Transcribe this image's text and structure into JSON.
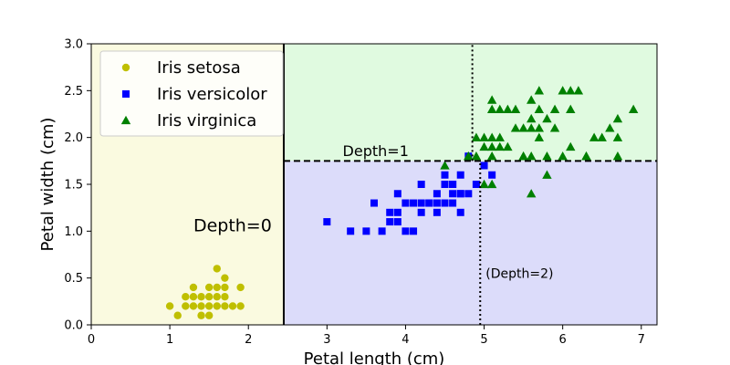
{
  "chart_data": {
    "type": "scatter",
    "title": "",
    "xlabel": "Petal length (cm)",
    "ylabel": "Petal width (cm)",
    "xlim": [
      0,
      7.2
    ],
    "ylim": [
      0,
      3.0
    ],
    "xticks": [
      0,
      1,
      2,
      3,
      4,
      5,
      6,
      7
    ],
    "yticks": [
      0.0,
      0.5,
      1.0,
      1.5,
      2.0,
      2.5,
      3.0
    ],
    "grid": false,
    "legend_position": "top-left",
    "regions": [
      {
        "x": [
          0,
          2.45
        ],
        "y": [
          0,
          3.0
        ],
        "color": "#fafae0"
      },
      {
        "x": [
          2.45,
          7.2
        ],
        "y": [
          1.75,
          3.0
        ],
        "color": "#e0fae0"
      },
      {
        "x": [
          2.45,
          7.2
        ],
        "y": [
          0,
          1.75
        ],
        "color": "#dcdcfa"
      }
    ],
    "boundaries": [
      {
        "type": "vertical",
        "x": 2.45,
        "y_range": [
          0,
          3.0
        ],
        "style": "solid",
        "width": 2
      },
      {
        "type": "horizontal",
        "y": 1.75,
        "x_range": [
          2.45,
          7.2
        ],
        "style": "dashed",
        "width": 2
      },
      {
        "type": "vertical",
        "x": 4.95,
        "y_range": [
          0,
          1.75
        ],
        "style": "dotted",
        "width": 2
      },
      {
        "type": "vertical",
        "x": 4.85,
        "y_range": [
          1.75,
          3.0
        ],
        "style": "dotted",
        "width": 2
      }
    ],
    "annotations": [
      {
        "text": "Depth=0",
        "x": 1.3,
        "y": 1.0,
        "size": "large"
      },
      {
        "text": "Depth=1",
        "x": 3.2,
        "y": 1.8,
        "size": "medium"
      },
      {
        "text": "(Depth=2)",
        "x": 5.02,
        "y": 0.5,
        "size": "small"
      }
    ],
    "series": [
      {
        "name": "Iris setosa",
        "marker": "circle",
        "color": "#bfbf00",
        "points": [
          [
            1.4,
            0.2
          ],
          [
            1.3,
            0.2
          ],
          [
            1.5,
            0.2
          ],
          [
            1.7,
            0.4
          ],
          [
            1.4,
            0.3
          ],
          [
            1.5,
            0.1
          ],
          [
            1.6,
            0.2
          ],
          [
            1.4,
            0.1
          ],
          [
            1.1,
            0.1
          ],
          [
            1.2,
            0.2
          ],
          [
            1.3,
            0.4
          ],
          [
            1.7,
            0.3
          ],
          [
            1.5,
            0.3
          ],
          [
            1.0,
            0.2
          ],
          [
            1.7,
            0.5
          ],
          [
            1.9,
            0.2
          ],
          [
            1.6,
            0.4
          ],
          [
            1.6,
            0.6
          ],
          [
            1.9,
            0.4
          ],
          [
            1.5,
            0.4
          ],
          [
            1.3,
            0.3
          ],
          [
            1.6,
            0.3
          ],
          [
            1.2,
            0.3
          ],
          [
            1.8,
            0.2
          ],
          [
            1.7,
            0.2
          ]
        ]
      },
      {
        "name": "Iris versicolor",
        "marker": "square",
        "color": "#0000ff",
        "points": [
          [
            4.7,
            1.4
          ],
          [
            4.5,
            1.5
          ],
          [
            4.9,
            1.5
          ],
          [
            4.0,
            1.3
          ],
          [
            4.6,
            1.5
          ],
          [
            4.5,
            1.3
          ],
          [
            4.7,
            1.6
          ],
          [
            3.3,
            1.0
          ],
          [
            4.6,
            1.3
          ],
          [
            3.9,
            1.4
          ],
          [
            3.5,
            1.0
          ],
          [
            4.2,
            1.5
          ],
          [
            4.0,
            1.0
          ],
          [
            3.6,
            1.3
          ],
          [
            4.4,
            1.4
          ],
          [
            4.1,
            1.0
          ],
          [
            4.5,
            1.5
          ],
          [
            3.9,
            1.1
          ],
          [
            4.8,
            1.8
          ],
          [
            4.0,
            1.3
          ],
          [
            4.9,
            1.5
          ],
          [
            4.7,
            1.2
          ],
          [
            4.3,
            1.3
          ],
          [
            4.4,
            1.3
          ],
          [
            4.8,
            1.4
          ],
          [
            5.0,
            1.7
          ],
          [
            3.8,
            1.1
          ],
          [
            3.7,
            1.0
          ],
          [
            5.1,
            1.6
          ],
          [
            4.2,
            1.2
          ],
          [
            3.0,
            1.1
          ],
          [
            4.1,
            1.3
          ],
          [
            4.6,
            1.4
          ],
          [
            4.7,
            1.4
          ],
          [
            3.8,
            1.2
          ],
          [
            4.4,
            1.2
          ],
          [
            4.5,
            1.6
          ],
          [
            4.2,
            1.3
          ],
          [
            3.9,
            1.2
          ],
          [
            4.3,
            1.3
          ],
          [
            4.6,
            1.5
          ]
        ]
      },
      {
        "name": "Iris virginica",
        "marker": "triangle",
        "color": "#008000",
        "points": [
          [
            6.0,
            2.5
          ],
          [
            5.1,
            1.9
          ],
          [
            5.9,
            2.1
          ],
          [
            5.6,
            1.8
          ],
          [
            5.8,
            2.2
          ],
          [
            6.6,
            2.1
          ],
          [
            4.5,
            1.7
          ],
          [
            6.3,
            1.8
          ],
          [
            5.8,
            1.8
          ],
          [
            6.1,
            2.5
          ],
          [
            5.1,
            2.0
          ],
          [
            5.3,
            1.9
          ],
          [
            5.5,
            2.1
          ],
          [
            5.0,
            2.0
          ],
          [
            5.1,
            2.4
          ],
          [
            5.3,
            2.3
          ],
          [
            5.5,
            1.8
          ],
          [
            6.7,
            2.2
          ],
          [
            6.9,
            2.3
          ],
          [
            5.0,
            1.5
          ],
          [
            5.7,
            2.3
          ],
          [
            4.9,
            2.0
          ],
          [
            6.7,
            2.0
          ],
          [
            4.9,
            1.8
          ],
          [
            5.7,
            2.1
          ],
          [
            6.0,
            1.8
          ],
          [
            4.8,
            1.8
          ],
          [
            5.6,
            2.1
          ],
          [
            5.8,
            1.6
          ],
          [
            6.1,
            1.9
          ],
          [
            6.4,
            2.0
          ],
          [
            5.6,
            2.2
          ],
          [
            5.1,
            1.5
          ],
          [
            5.6,
            1.4
          ],
          [
            6.1,
            2.3
          ],
          [
            5.5,
            1.8
          ],
          [
            4.8,
            1.8
          ],
          [
            5.4,
            2.1
          ],
          [
            5.2,
            2.3
          ],
          [
            5.2,
            2.0
          ],
          [
            5.4,
            2.3
          ],
          [
            5.1,
            1.8
          ],
          [
            5.0,
            1.9
          ],
          [
            5.7,
            2.5
          ],
          [
            5.9,
            2.3
          ],
          [
            6.2,
            2.5
          ],
          [
            6.5,
            2.0
          ],
          [
            6.7,
            1.8
          ],
          [
            6.3,
            1.8
          ],
          [
            5.6,
            2.4
          ],
          [
            5.7,
            2.0
          ],
          [
            5.1,
            2.3
          ],
          [
            5.2,
            1.9
          ]
        ]
      }
    ]
  }
}
